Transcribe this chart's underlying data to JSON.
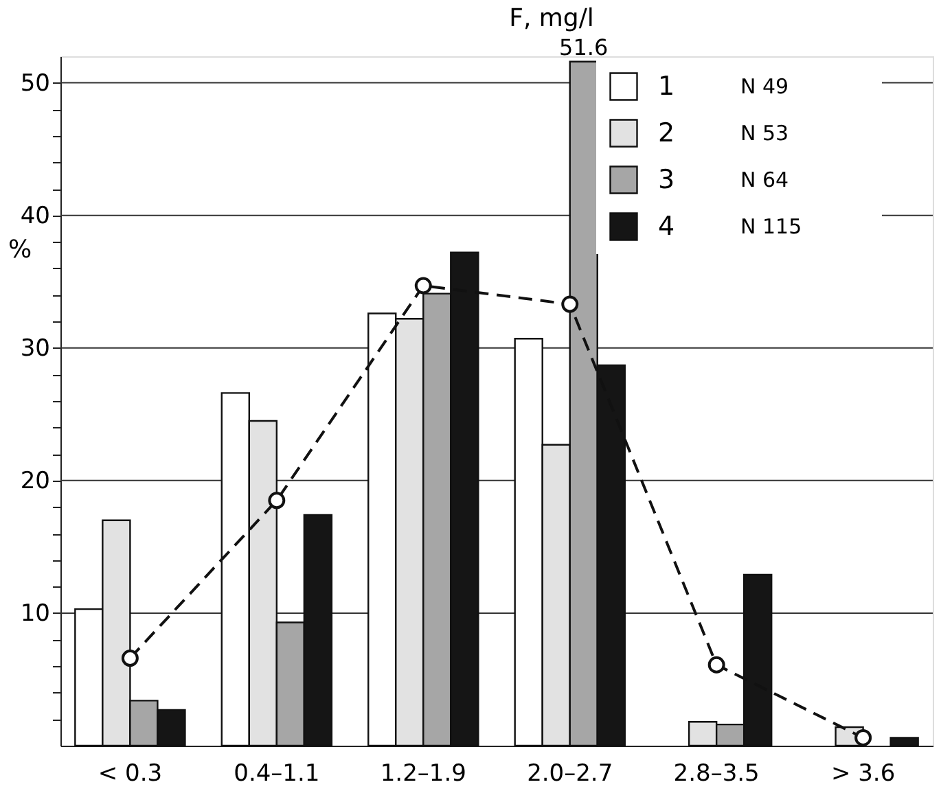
{
  "chart_data": {
    "type": "bar",
    "title": "F, mg/l",
    "ylabel": "%",
    "categories": [
      "< 0.3",
      "0.4–1.1",
      "1.2–1.9",
      "2.0–2.7",
      "2.8–3.5",
      "> 3.6"
    ],
    "series": [
      {
        "name": "1",
        "color": "#ffffff",
        "values": [
          10.3,
          26.6,
          32.6,
          30.7,
          null,
          null
        ]
      },
      {
        "name": "2",
        "color": "#e2e2e2",
        "values": [
          17.0,
          24.5,
          32.2,
          22.7,
          1.8,
          1.4
        ]
      },
      {
        "name": "3",
        "color": "#a6a6a6",
        "values": [
          3.4,
          9.3,
          34.1,
          51.6,
          1.6,
          null
        ],
        "value_labels": [
          null,
          null,
          null,
          "51.6",
          null,
          null
        ]
      },
      {
        "name": "4",
        "color": "#151515",
        "values": [
          2.7,
          17.4,
          37.2,
          28.7,
          12.9,
          0.6
        ]
      },
      {
        "type": "line",
        "color": "#111111",
        "marker": "circle",
        "line_style": "dashed",
        "values": [
          6.6,
          18.5,
          34.7,
          33.3,
          6.1,
          0.6
        ]
      }
    ],
    "annotations": [
      "N 49",
      "N 53",
      "N 64",
      "N 115"
    ],
    "legend": "top right",
    "grid": "y",
    "ylim": [
      0,
      52
    ],
    "yticks": [
      10,
      20,
      30,
      40,
      50,
      {
        "value": 2,
        "label": null
      },
      {
        "value": 4,
        "label": null
      },
      {
        "value": 6,
        "label": null
      },
      {
        "value": 8,
        "label": null
      },
      {
        "value": 12,
        "label": null
      },
      {
        "value": 14,
        "label": null
      },
      {
        "value": 16,
        "label": null
      },
      {
        "value": 18,
        "label": null
      },
      {
        "value": 22,
        "label": null
      },
      {
        "value": 24,
        "label": null
      },
      {
        "value": 26,
        "label": null
      },
      {
        "value": 28,
        "label": null
      },
      {
        "value": 32,
        "label": null
      },
      {
        "value": 34,
        "label": null
      },
      {
        "value": 36,
        "label": null
      },
      {
        "value": 38,
        "label": null
      },
      {
        "value": 42,
        "label": null
      },
      {
        "value": 44,
        "label": null
      },
      {
        "value": 46,
        "label": null
      },
      {
        "value": 48,
        "label": null
      }
    ]
  }
}
